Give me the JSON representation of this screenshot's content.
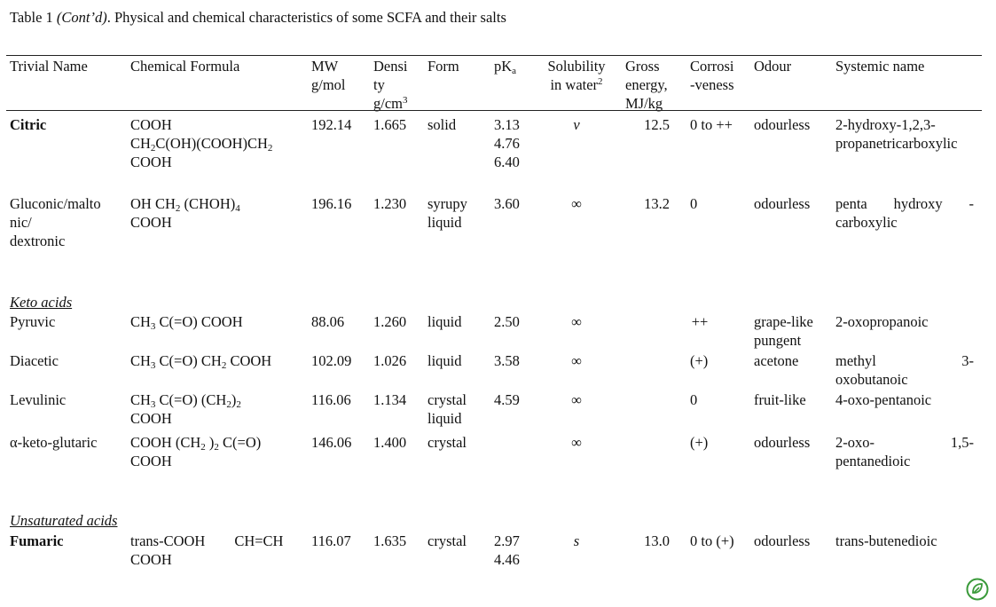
{
  "caption": {
    "label": "Table 1",
    "cont": "(Cont’d)",
    "text": ". Physical and chemical characteristics of some SCFA and their salts"
  },
  "headers": {
    "trivial": "Trivial Name",
    "formula": "Chemical Formula",
    "mw": "MW\ng/mol",
    "density_main": "Densi\nty\ng/cm",
    "density_sup": "3",
    "form": "Form",
    "pka_main": "pK",
    "pka_sub": "a",
    "solubility_main": "Solubility\nin water",
    "solubility_sup": "2",
    "gross": "Gross\nenergy,\nMJ/kg",
    "corrosiveness": "Corrosi\n-veness",
    "odour": "Odour",
    "systemic": "Systemic name"
  },
  "sections": {
    "keto": "Keto acids",
    "unsaturated": "Unsaturated acids"
  },
  "rows": [
    {
      "name": "Citric",
      "formula_l1": "COOH",
      "formula_l2_a": "CH",
      "formula_l2_s1": "2",
      "formula_l2_b": "C(OH)(COOH)CH",
      "formula_l2_s2": "2",
      "formula_l3": "COOH",
      "mw": "192.14",
      "density": "1.665",
      "form": "solid",
      "pka": "3.13\n4.76\n6.40",
      "solubility": "v",
      "gross": "12.5",
      "corrosiveness": "0 to ++",
      "odour": "odourless",
      "systemic": "2-hydroxy-1,2,3-\npropanetricarboxylic"
    },
    {
      "name": "Gluconic/malto\nnic/\ndextronic",
      "formula_a": "OH CH",
      "formula_s1": "2",
      "formula_b": " (CHOH)",
      "formula_s2": "4",
      "formula_l2": "COOH",
      "mw": "196.16",
      "density": "1.230",
      "form": "syrupy\nliquid",
      "pka": "3.60",
      "solubility": "∞",
      "gross": "13.2",
      "corrosiveness": "0",
      "odour": "odourless",
      "systemic_l1": "penta    hydroxy    -",
      "systemic_l2": "carboxylic"
    },
    {
      "name": "Pyruvic",
      "formula_a": "CH",
      "formula_s1": "3",
      "formula_b": " C(=O) COOH",
      "mw": "88.06",
      "density": "1.260",
      "form": "liquid",
      "pka": "2.50",
      "solubility": "∞",
      "gross": "",
      "corrosiveness": "++",
      "odour": "grape-like\npungent",
      "systemic": "2-oxopropanoic"
    },
    {
      "name": "Diacetic",
      "formula_a": "CH",
      "formula_s1": "3",
      "formula_b": " C(=O) CH",
      "formula_s2": "2",
      "formula_c": " COOH",
      "mw": "102.09",
      "density": "1.026",
      "form": "liquid",
      "pka": "3.58",
      "solubility": "∞",
      "gross": "",
      "corrosiveness": "(+)",
      "odour": "acetone",
      "systemic_l1": "methyl                3-",
      "systemic_l2": "oxobutanoic"
    },
    {
      "name": "Levulinic",
      "formula_a": "CH",
      "formula_s1": "3",
      "formula_b": " C(=O) (CH",
      "formula_s2": "2",
      "formula_c": ")",
      "formula_s3": "2",
      "formula_l2": "COOH",
      "mw": "116.06",
      "density": "1.134",
      "form": "crystal\nliquid",
      "pka": "4.59",
      "solubility": "∞",
      "gross": "",
      "corrosiveness": "0",
      "odour": "fruit-like",
      "systemic": "4-oxo-pentanoic"
    },
    {
      "name": "α-keto-glutaric",
      "formula_a": "COOH (CH",
      "formula_s1": "2",
      "formula_b": " )",
      "formula_s2": "2",
      "formula_c": " C(=O)",
      "formula_l2": "COOH",
      "mw": "146.06",
      "density": "1.400",
      "form": "crystal",
      "pka": "",
      "solubility": "∞",
      "gross": "",
      "corrosiveness": "(+)",
      "odour": "odourless",
      "systemic_l1": "2-oxo-                1,5-",
      "systemic_l2": "pentanedioic"
    },
    {
      "name": "Fumaric",
      "formula_l1": "trans-COOH        CH=CH",
      "formula_l2": "COOH",
      "mw": "116.07",
      "density": "1.635",
      "form": "crystal",
      "pka": "2.97\n4.46",
      "solubility": "s",
      "gross": "13.0",
      "corrosiveness": "0 to (+)",
      "odour": "odourless",
      "systemic": "trans-butenedioic"
    }
  ],
  "logo_icon": "leaf-circle-icon",
  "logo_color": "#3a9a3a"
}
